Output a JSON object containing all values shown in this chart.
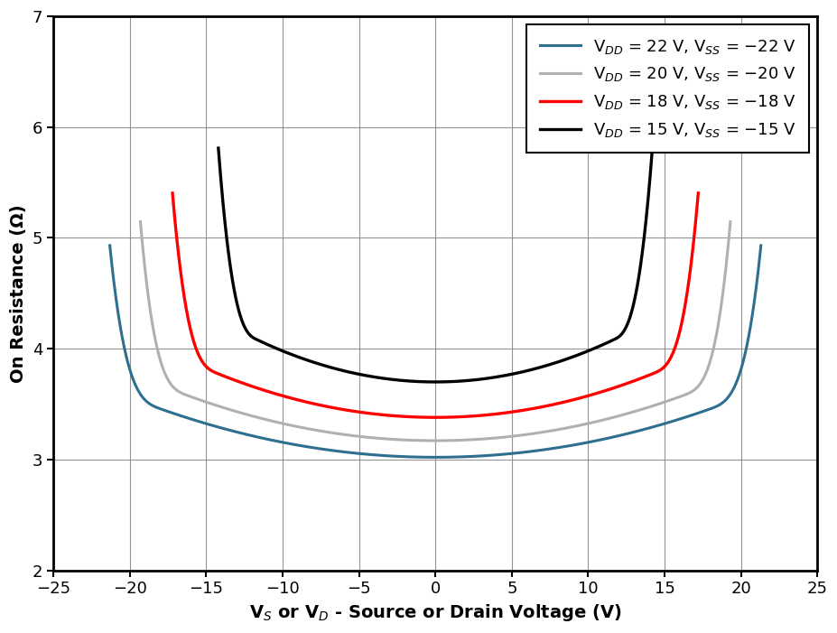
{
  "xlabel": "V$_S$ or V$_D$ - Source or Drain Voltage (V)",
  "ylabel": "On Resistance (Ω)",
  "xlim": [
    -25,
    25
  ],
  "ylim": [
    2,
    7
  ],
  "xticks": [
    -25,
    -20,
    -15,
    -10,
    -5,
    0,
    5,
    10,
    15,
    20,
    25
  ],
  "yticks": [
    2,
    3,
    4,
    5,
    6,
    7
  ],
  "curves": [
    {
      "label": "V$_{DD}$ = 22 V, V$_{SS}$ = −22 V",
      "color": "#2e6e8e",
      "linewidth": 2.2,
      "vdd": 22,
      "base": 3.02,
      "k": 0.00135,
      "x_max": 21.3,
      "edge_width": 3.5,
      "edge_amp": 1.3,
      "edge_power": 3.5
    },
    {
      "label": "V$_{DD}$ = 20 V, V$_{SS}$ = −20 V",
      "color": "#b0b0b0",
      "linewidth": 2.2,
      "vdd": 20,
      "base": 3.17,
      "k": 0.00155,
      "x_max": 19.3,
      "edge_width": 3.2,
      "edge_amp": 1.4,
      "edge_power": 3.5
    },
    {
      "label": "V$_{DD}$ = 18 V, V$_{SS}$ = −18 V",
      "color": "#ff0000",
      "linewidth": 2.4,
      "vdd": 18,
      "base": 3.38,
      "k": 0.00195,
      "x_max": 17.2,
      "edge_width": 3.0,
      "edge_amp": 1.45,
      "edge_power": 3.2
    },
    {
      "label": "V$_{DD}$ = 15 V, V$_{SS}$ = −15 V",
      "color": "#000000",
      "linewidth": 2.4,
      "vdd": 15,
      "base": 3.7,
      "k": 0.0028,
      "x_max": 14.2,
      "edge_width": 2.5,
      "edge_amp": 1.55,
      "edge_power": 2.8
    }
  ],
  "background_color": "#ffffff",
  "legend_fontsize": 13,
  "axis_label_fontsize": 14,
  "tick_fontsize": 13
}
